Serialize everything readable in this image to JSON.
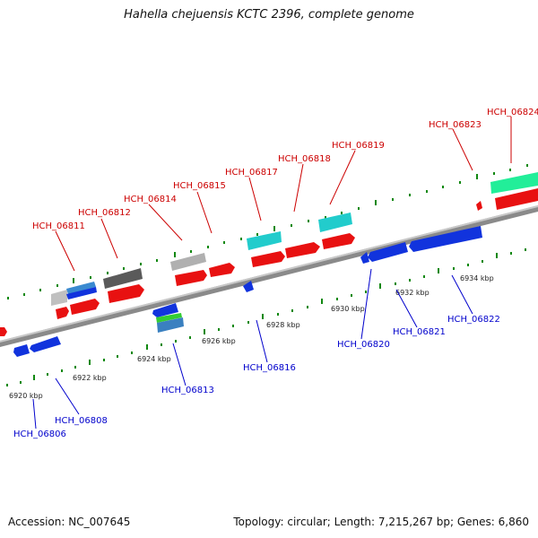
{
  "title": "Hahella chejuensis KCTC 2396, complete genome",
  "accession": "Accession: NC_007645",
  "topology": "Topology: circular; Length: 7,215,267 bp; Genes: 6,860",
  "colors": {
    "forward_label": "#cc0000",
    "reverse_label": "#0000cc",
    "forward_gene": "#ee1111",
    "reverse_gene": "#1133dd",
    "tick": "#118811",
    "backbone": "#888888"
  },
  "kbp_labels": [
    "6920 kbp",
    "6922 kbp",
    "6924 kbp",
    "6926 kbp",
    "6928 kbp",
    "6930 kbp",
    "6932 kbp",
    "6934 kbp"
  ],
  "forward_labels": [
    "HCH_06811",
    "HCH_06812",
    "HCH_06814",
    "HCH_06815",
    "HCH_06817",
    "HCH_06818",
    "HCH_06819",
    "HCH_06823",
    "HCH_06824"
  ],
  "reverse_labels": [
    "HCH_06806",
    "HCH_06808",
    "HCH_06813",
    "HCH_06816",
    "HCH_06820",
    "HCH_06821",
    "HCH_06822"
  ]
}
